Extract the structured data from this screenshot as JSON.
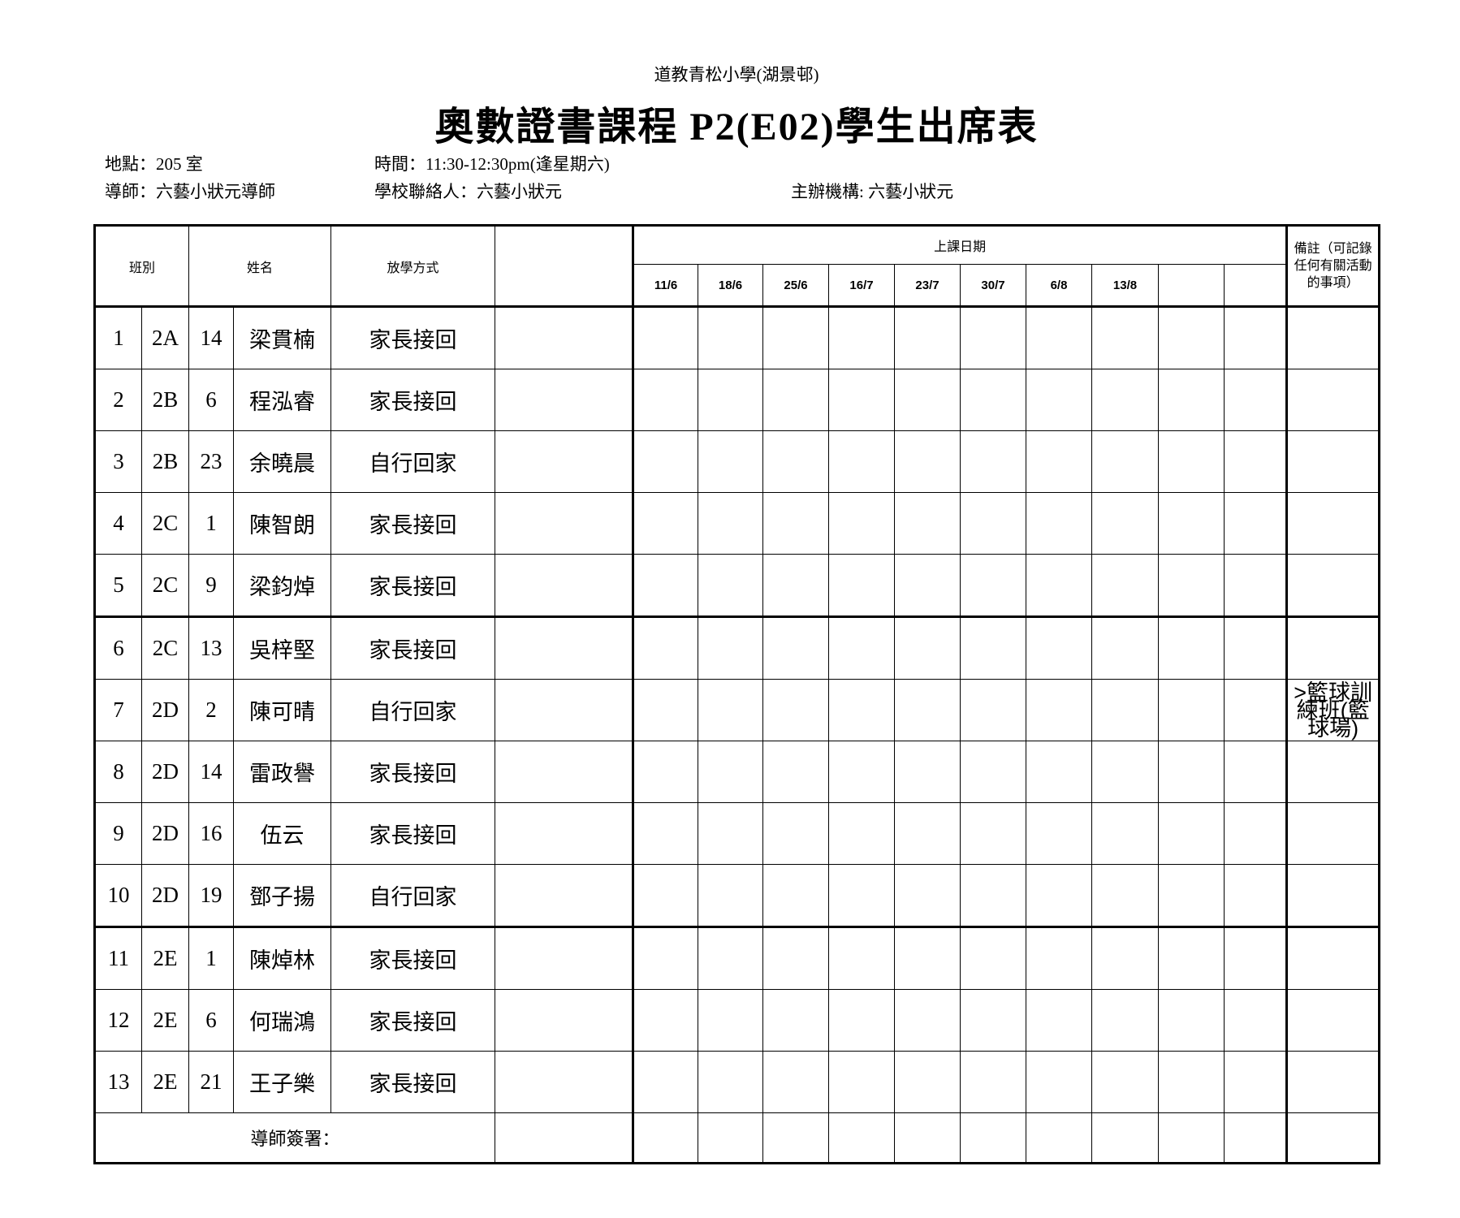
{
  "header": {
    "school": "道教青松小學(湖景邨)",
    "title": "奧數證書課程 P2(E02)學生出席表",
    "location": "地點：205 室",
    "time": "時間：11:30-12:30pm(逢星期六)",
    "tutor": "導師：六藝小狀元導師",
    "contact": "學校聯絡人：六藝小狀元",
    "organizer": "主辦機構: 六藝小狀元"
  },
  "table": {
    "col_class": "班別",
    "col_name": "姓名",
    "col_dismissal": "放學方式",
    "col_dates": "上課日期",
    "col_notes": "備註（可記錄任何有關活動的事項）",
    "dates": [
      "11/6",
      "18/6",
      "25/6",
      "16/7",
      "23/7",
      "30/7",
      "6/8",
      "13/8",
      "",
      ""
    ],
    "rows": [
      {
        "no": "1",
        "cls": "2A",
        "num": "14",
        "name": "梁貫楠",
        "dismissal": "家長接回",
        "note": ""
      },
      {
        "no": "2",
        "cls": "2B",
        "num": "6",
        "name": "程泓睿",
        "dismissal": "家長接回",
        "note": ""
      },
      {
        "no": "3",
        "cls": "2B",
        "num": "23",
        "name": "余曉晨",
        "dismissal": "自行回家",
        "note": ""
      },
      {
        "no": "4",
        "cls": "2C",
        "num": "1",
        "name": "陳智朗",
        "dismissal": "家長接回",
        "note": ""
      },
      {
        "no": "5",
        "cls": "2C",
        "num": "9",
        "name": "梁鈞焯",
        "dismissal": "家長接回",
        "note": ""
      },
      {
        "no": "6",
        "cls": "2C",
        "num": "13",
        "name": "吳梓堅",
        "dismissal": "家長接回",
        "note": ""
      },
      {
        "no": "7",
        "cls": "2D",
        "num": "2",
        "name": "陳可晴",
        "dismissal": "自行回家",
        "note": ">籃球訓練班(籃球場)"
      },
      {
        "no": "8",
        "cls": "2D",
        "num": "14",
        "name": "雷政譽",
        "dismissal": "家長接回",
        "note": ""
      },
      {
        "no": "9",
        "cls": "2D",
        "num": "16",
        "name": "伍云",
        "dismissal": "家長接回",
        "note": ""
      },
      {
        "no": "10",
        "cls": "2D",
        "num": "19",
        "name": "鄧子揚",
        "dismissal": "自行回家",
        "note": ""
      },
      {
        "no": "11",
        "cls": "2E",
        "num": "1",
        "name": "陳焯林",
        "dismissal": "家長接回",
        "note": ""
      },
      {
        "no": "12",
        "cls": "2E",
        "num": "6",
        "name": "何瑞鴻",
        "dismissal": "家長接回",
        "note": ""
      },
      {
        "no": "13",
        "cls": "2E",
        "num": "21",
        "name": "王子樂",
        "dismissal": "家長接回",
        "note": ""
      }
    ],
    "signature_label": "導師簽署："
  }
}
